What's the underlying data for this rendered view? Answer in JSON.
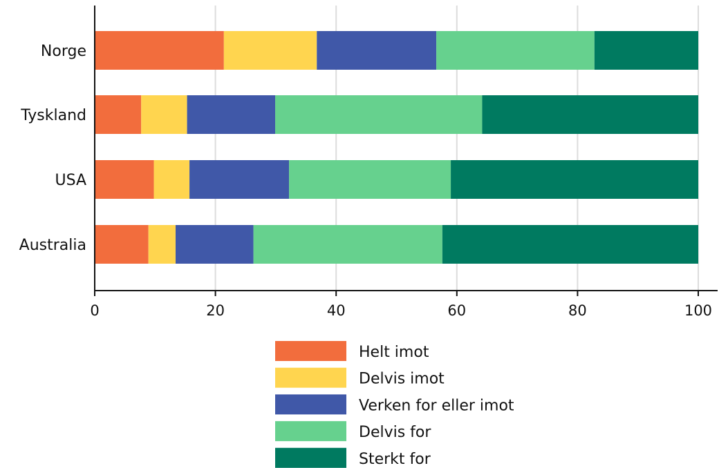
{
  "chart_data": {
    "type": "bar",
    "orientation": "horizontal",
    "stacked": true,
    "categories": [
      "Norge",
      "Tyskland",
      "USA",
      "Australia"
    ],
    "series": [
      {
        "name": "Helt imot",
        "color": "#F26D3D",
        "values": [
          21.4,
          7.7,
          9.8,
          8.9
        ]
      },
      {
        "name": "Delvis imot",
        "color": "#FFD54F",
        "values": [
          15.4,
          7.6,
          5.9,
          4.5
        ]
      },
      {
        "name": "Verken for eller imot",
        "color": "#4058A8",
        "values": [
          19.8,
          14.6,
          16.5,
          12.9
        ]
      },
      {
        "name": "Delvis for",
        "color": "#66D18E",
        "values": [
          26.2,
          34.3,
          26.8,
          31.3
        ]
      },
      {
        "name": "Sterkt for",
        "color": "#007A60",
        "values": [
          17.2,
          35.8,
          41.0,
          42.4
        ]
      }
    ],
    "xlim": [
      0,
      100
    ],
    "xticks": [
      "0",
      "20",
      "40",
      "60",
      "80",
      "100"
    ],
    "grid": true,
    "legend_position": "bottom"
  }
}
